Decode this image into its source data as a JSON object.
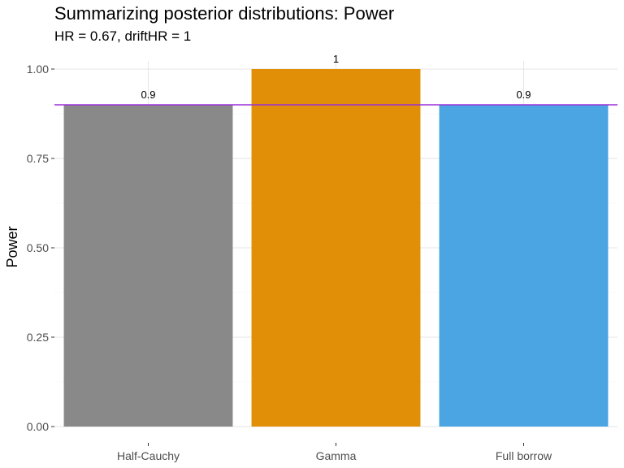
{
  "chart_data": {
    "type": "bar",
    "title": "Summarizing posterior distributions: Power",
    "subtitle": "HR = 0.67, driftHR = 1",
    "xlabel": "",
    "ylabel": "Power",
    "categories": [
      "Half-Cauchy",
      "Gamma",
      "Full borrow"
    ],
    "values": [
      0.9,
      1.0,
      0.9
    ],
    "data_labels": [
      "0.9",
      "1",
      "0.9"
    ],
    "colors": [
      "#898989",
      "#E08F07",
      "#4BA5E3"
    ],
    "ylim": [
      0,
      1
    ],
    "yticks": [
      0,
      0.25,
      0.5,
      0.75,
      1
    ],
    "ytick_labels": [
      "0.00",
      "0.25",
      "0.50",
      "0.75",
      "1.00"
    ],
    "reference_line": {
      "y": 0.9,
      "color": "#9B30D9"
    },
    "grid": true,
    "legend": "none"
  }
}
